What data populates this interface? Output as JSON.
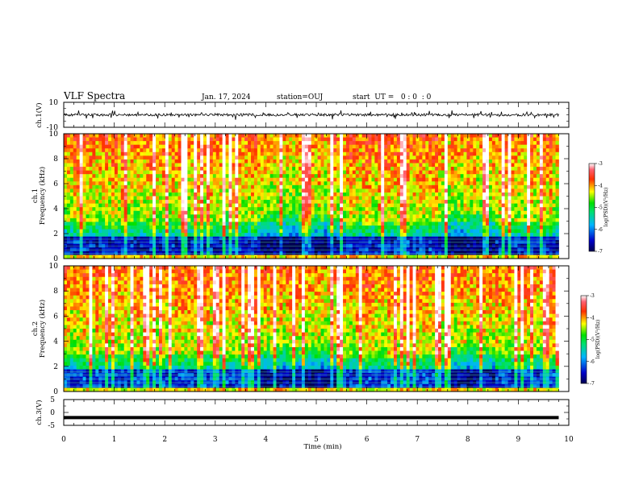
{
  "header": {
    "title": "VLF Spectra",
    "date": "Jan. 17, 2024",
    "station": "station=OUJ",
    "start_ut": "start  UT =   0 : 0  : 0"
  },
  "colors": {
    "spectrum_low": "#00008c",
    "spectrum_mid": "#00e000",
    "spectrum_high": "#ff2000",
    "trace": "#000000"
  },
  "chart_data": [
    {
      "type": "line",
      "panel": "ch.1 waveform",
      "ylabel": "ch.1(V)",
      "ylim": [
        -10,
        10
      ],
      "yticks": [
        "10",
        "-10"
      ],
      "xlim": [
        0,
        10
      ],
      "series": [
        {
          "x_range": [
            0,
            9.8
          ],
          "mean": 0,
          "noise_amplitude": 1,
          "spike_amplitude": 3
        }
      ]
    },
    {
      "type": "heatmap",
      "panel": "ch.1 spectrogram",
      "ylabel_top": "ch.1",
      "ylabel": "Frequency  (kHz)",
      "ylim": [
        0,
        10
      ],
      "yticks": [
        "0",
        "2",
        "4",
        "6",
        "8",
        "10"
      ],
      "xlim": [
        0,
        10
      ],
      "data_extent_min": [
        0,
        9.8
      ],
      "colorbar": {
        "label": "log(PSD)(V²/Hz)",
        "range": [
          -7,
          -3
        ],
        "ticks": [
          "-3",
          "-4",
          "-5",
          "-6",
          "-7"
        ]
      }
    },
    {
      "type": "heatmap",
      "panel": "ch.2 spectrogram",
      "ylabel_top": "ch.2",
      "ylabel": "Frequency  (kHz)",
      "ylim": [
        0,
        10
      ],
      "yticks": [
        "0",
        "2",
        "4",
        "6",
        "8",
        "10"
      ],
      "xlim": [
        0,
        10
      ],
      "data_extent_min": [
        0,
        9.8
      ],
      "colorbar": {
        "label": "log(PSD)(V²/Hz)",
        "range": [
          -7,
          -3
        ],
        "ticks": [
          "-3",
          "-4",
          "-5",
          "-6",
          "-7"
        ]
      }
    },
    {
      "type": "line",
      "panel": "ch.3 waveform",
      "ylabel": "ch.3(V)",
      "ylim": [
        -5,
        5
      ],
      "yticks": [
        "5",
        "0",
        "-5"
      ],
      "xlim": [
        0,
        10
      ],
      "series": [
        {
          "x_range": [
            0,
            9.8
          ],
          "mean": -2,
          "noise_amplitude": 0.05
        }
      ]
    }
  ],
  "xaxis": {
    "label": "Time  (min)",
    "ticks": [
      "0",
      "1",
      "2",
      "3",
      "4",
      "5",
      "6",
      "7",
      "8",
      "9",
      "10"
    ]
  }
}
